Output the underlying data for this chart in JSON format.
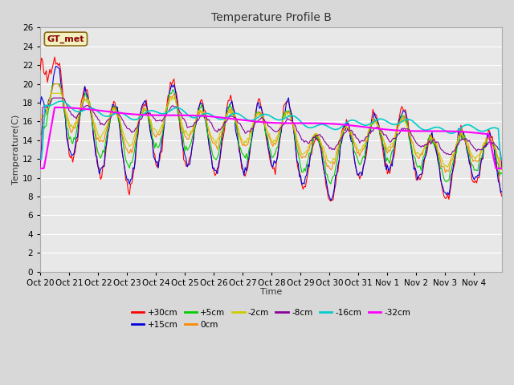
{
  "title": "Temperature Profile B",
  "xlabel": "Time",
  "ylabel": "Temperature(C)",
  "annotation": "GT_met",
  "ylim": [
    0,
    26
  ],
  "yticks": [
    0,
    2,
    4,
    6,
    8,
    10,
    12,
    14,
    16,
    18,
    20,
    22,
    24,
    26
  ],
  "xtick_labels": [
    "Oct 20",
    "Oct 21",
    "Oct 22",
    "Oct 23",
    "Oct 24",
    "Oct 25",
    "Oct 26",
    "Oct 27",
    "Oct 28",
    "Oct 29",
    "Oct 30",
    "Oct 31",
    "Nov 1",
    "Nov 2",
    "Nov 3",
    "Nov 4"
  ],
  "series": {
    "+30cm": {
      "color": "#ff0000",
      "lw": 0.8
    },
    "+15cm": {
      "color": "#0000dd",
      "lw": 0.8
    },
    "+5cm": {
      "color": "#00cc00",
      "lw": 0.8
    },
    "0cm": {
      "color": "#ff8800",
      "lw": 0.8
    },
    "-2cm": {
      "color": "#cccc00",
      "lw": 0.8
    },
    "-8cm": {
      "color": "#880099",
      "lw": 0.8
    },
    "-16cm": {
      "color": "#00cccc",
      "lw": 1.2
    },
    "-32cm": {
      "color": "#ff00ff",
      "lw": 1.5
    }
  },
  "legend_order": [
    "+30cm",
    "+15cm",
    "+5cm",
    "0cm",
    "-2cm",
    "-8cm",
    "-16cm",
    "-32cm"
  ],
  "fig_facecolor": "#d8d8d8",
  "axes_facecolor": "#e8e8e8",
  "grid_color": "#ffffff",
  "title_fontsize": 10,
  "axis_label_fontsize": 8,
  "tick_fontsize": 7.5
}
